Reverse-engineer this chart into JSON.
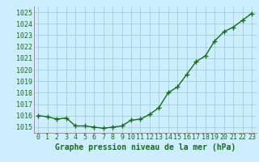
{
  "x": [
    0,
    1,
    2,
    3,
    4,
    5,
    6,
    7,
    8,
    9,
    10,
    11,
    12,
    13,
    14,
    15,
    16,
    17,
    18,
    19,
    20,
    21,
    22,
    23
  ],
  "y": [
    1016.0,
    1015.9,
    1015.7,
    1015.8,
    1015.1,
    1015.1,
    1015.0,
    1014.9,
    1015.0,
    1015.1,
    1015.6,
    1015.7,
    1016.1,
    1016.7,
    1018.0,
    1018.5,
    1019.6,
    1020.7,
    1021.2,
    1022.5,
    1023.3,
    1023.7,
    1024.3,
    1024.9
  ],
  "ylim_min": 1014.5,
  "ylim_max": 1025.5,
  "yticks": [
    1015,
    1016,
    1017,
    1018,
    1019,
    1020,
    1021,
    1022,
    1023,
    1024,
    1025
  ],
  "xticks": [
    0,
    1,
    2,
    3,
    4,
    5,
    6,
    7,
    8,
    9,
    10,
    11,
    12,
    13,
    14,
    15,
    16,
    17,
    18,
    19,
    20,
    21,
    22,
    23
  ],
  "xlabel": "Graphe pression niveau de la mer (hPa)",
  "line_color": "#1a6b1a",
  "marker": "+",
  "bg_color": "#cceeff",
  "grid_color": "#99cccc",
  "tick_label_color": "#1a6b1a",
  "xlabel_color": "#1a6b1a",
  "line_width": 1.0,
  "marker_size": 4,
  "xlabel_fontsize": 7,
  "tick_fontsize": 6,
  "xlim_min": -0.5,
  "xlim_max": 23.5
}
